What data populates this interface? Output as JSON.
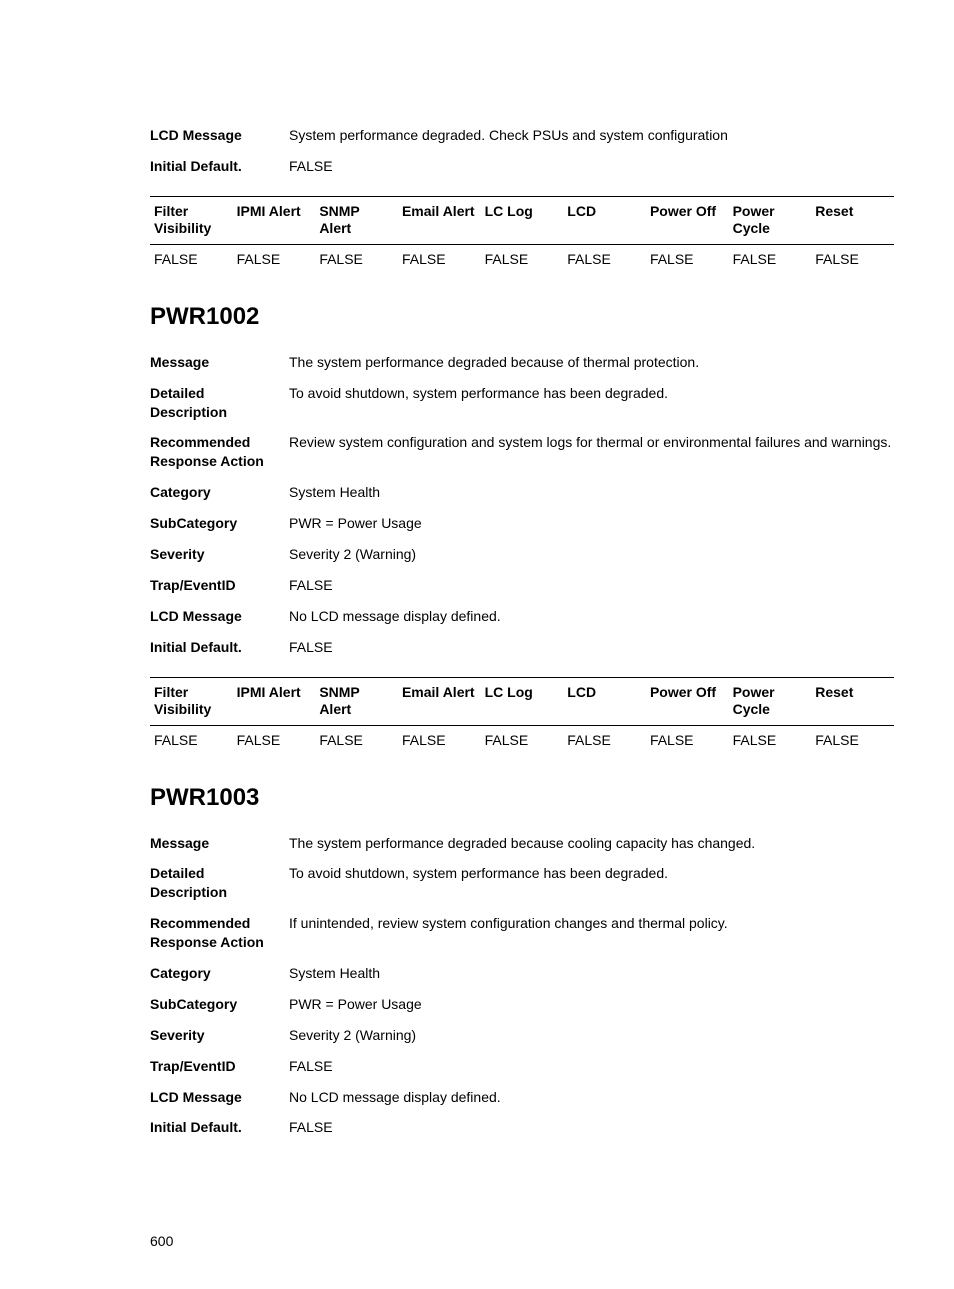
{
  "top_section": {
    "rows": [
      {
        "label": "LCD Message",
        "value": "System performance degraded. Check PSUs and system configuration"
      },
      {
        "label": "Initial Default.",
        "value": "FALSE"
      }
    ],
    "matrix_headers": [
      "Filter Visibility",
      "IPMI Alert",
      "SNMP Alert",
      "Email Alert",
      "LC Log",
      "LCD",
      "Power Off",
      "Power Cycle",
      "Reset"
    ],
    "matrix_values": [
      "FALSE",
      "FALSE",
      "FALSE",
      "FALSE",
      "FALSE",
      "FALSE",
      "FALSE",
      "FALSE",
      "FALSE"
    ]
  },
  "pwr1002": {
    "heading": "PWR1002",
    "rows": [
      {
        "label": "Message",
        "value": "The system performance degraded because of thermal protection."
      },
      {
        "label": "Detailed Description",
        "value": "To avoid shutdown, system performance has been degraded."
      },
      {
        "label": "Recommended Response Action",
        "value": "Review system configuration and system logs for thermal or environmental failures and warnings."
      },
      {
        "label": "Category",
        "value": "System Health"
      },
      {
        "label": "SubCategory",
        "value": "PWR = Power Usage"
      },
      {
        "label": "Severity",
        "value": "Severity 2 (Warning)"
      },
      {
        "label": "Trap/EventID",
        "value": "FALSE"
      },
      {
        "label": "LCD Message",
        "value": "No LCD message display defined."
      },
      {
        "label": "Initial Default.",
        "value": "FALSE"
      }
    ],
    "matrix_headers": [
      "Filter Visibility",
      "IPMI Alert",
      "SNMP Alert",
      "Email Alert",
      "LC Log",
      "LCD",
      "Power Off",
      "Power Cycle",
      "Reset"
    ],
    "matrix_values": [
      "FALSE",
      "FALSE",
      "FALSE",
      "FALSE",
      "FALSE",
      "FALSE",
      "FALSE",
      "FALSE",
      "FALSE"
    ]
  },
  "pwr1003": {
    "heading": "PWR1003",
    "rows": [
      {
        "label": "Message",
        "value": "The system performance degraded because cooling capacity has changed."
      },
      {
        "label": "Detailed Description",
        "value": "To avoid shutdown, system performance has been degraded."
      },
      {
        "label": "Recommended Response Action",
        "value": "If unintended, review system configuration changes and thermal policy."
      },
      {
        "label": "Category",
        "value": "System Health"
      },
      {
        "label": "SubCategory",
        "value": "PWR = Power Usage"
      },
      {
        "label": "Severity",
        "value": "Severity 2 (Warning)"
      },
      {
        "label": "Trap/EventID",
        "value": "FALSE"
      },
      {
        "label": "LCD Message",
        "value": "No LCD message display defined."
      },
      {
        "label": "Initial Default.",
        "value": "FALSE"
      }
    ]
  },
  "page_number": "600"
}
